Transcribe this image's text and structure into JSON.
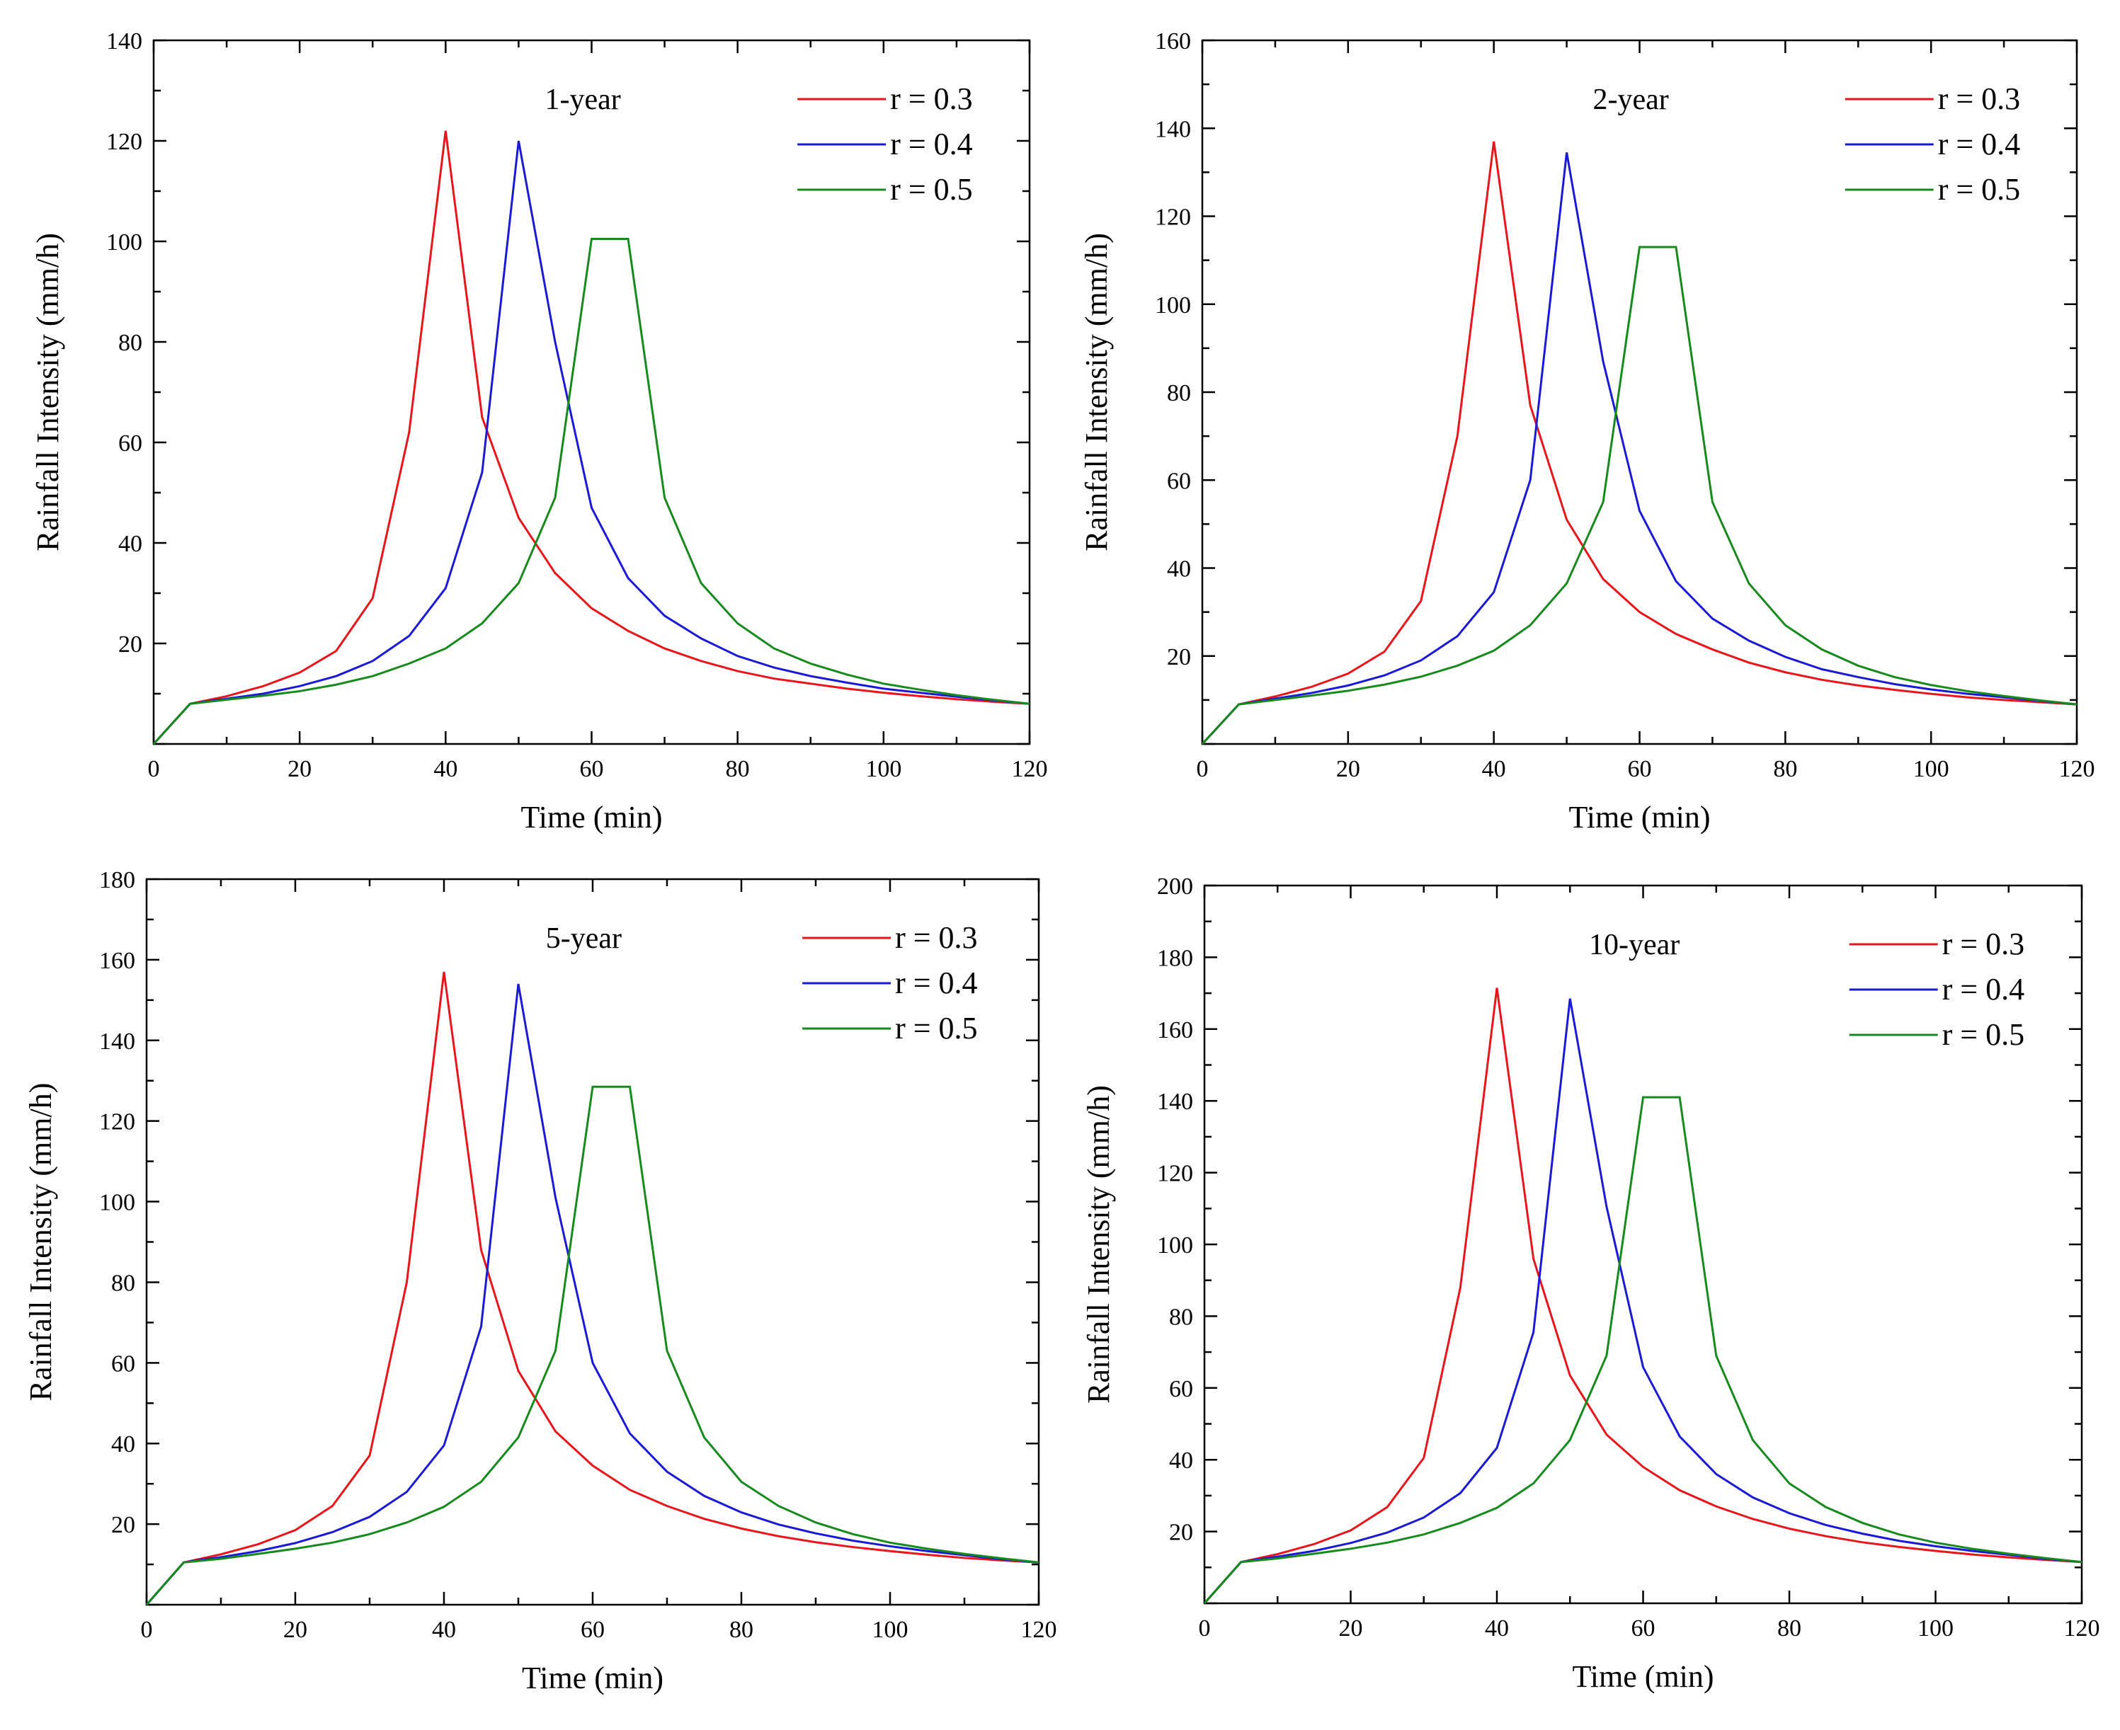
{
  "figure": {
    "description_free": true
  },
  "chart_data": [
    {
      "type": "line",
      "title": "1-year",
      "xlabel": "Time (min)",
      "ylabel": "Rainfall Intensity (mm/h)",
      "xlim": [
        0,
        120
      ],
      "ylim": [
        0,
        140
      ],
      "xticks": [
        0,
        20,
        40,
        60,
        80,
        100,
        120
      ],
      "yticks": [
        20,
        40,
        60,
        80,
        100,
        120,
        140
      ],
      "legend_position": "top-right",
      "x": [
        0,
        5,
        10,
        15,
        20,
        25,
        30,
        35,
        40,
        45,
        50,
        55,
        60,
        65,
        70,
        75,
        80,
        85,
        90,
        95,
        100,
        105,
        110,
        115,
        120
      ],
      "series": [
        {
          "name": "r = 0.3",
          "color": "#e8151b",
          "values": [
            0,
            8,
            9.5,
            11.5,
            14.2,
            18.5,
            29,
            62,
            122,
            65,
            45,
            34,
            27,
            22.5,
            19,
            16.5,
            14.5,
            13,
            12,
            11,
            10.2,
            9.5,
            8.9,
            8.4,
            8
          ]
        },
        {
          "name": "r = 0.4",
          "color": "#1a1ad6",
          "values": [
            0,
            8,
            9,
            10,
            11.5,
            13.5,
            16.5,
            21.5,
            31,
            54,
            120,
            80,
            47,
            33,
            25.5,
            21,
            17.5,
            15.2,
            13.5,
            12.2,
            11,
            10.2,
            9.4,
            8.7,
            8
          ]
        },
        {
          "name": "r = 0.5",
          "color": "#178a1e",
          "values": [
            0,
            8,
            8.8,
            9.6,
            10.5,
            11.8,
            13.5,
            16,
            19,
            24,
            32,
            49,
            100.5,
            100.5,
            49,
            32,
            24,
            19,
            16,
            13.8,
            12,
            10.8,
            9.7,
            8.8,
            8
          ]
        }
      ]
    },
    {
      "type": "line",
      "title": "2-year",
      "xlabel": "Time (min)",
      "ylabel": "Rainfall Intensity (mm/h)",
      "xlim": [
        0,
        120
      ],
      "ylim": [
        0,
        160
      ],
      "xticks": [
        0,
        20,
        40,
        60,
        80,
        100,
        120
      ],
      "yticks": [
        20,
        40,
        60,
        80,
        100,
        120,
        140,
        160
      ],
      "legend_position": "top-right",
      "x": [
        0,
        5,
        10,
        15,
        20,
        25,
        30,
        35,
        40,
        45,
        50,
        55,
        60,
        65,
        70,
        75,
        80,
        85,
        90,
        95,
        100,
        105,
        110,
        115,
        120
      ],
      "series": [
        {
          "name": "r = 0.3",
          "color": "#e8151b",
          "values": [
            0,
            9,
            10.8,
            13,
            16,
            21,
            32.5,
            70,
            137,
            77,
            51,
            37.5,
            30,
            25,
            21.5,
            18.5,
            16.3,
            14.6,
            13.3,
            12.3,
            11.4,
            10.6,
            10,
            9.5,
            9
          ]
        },
        {
          "name": "r = 0.4",
          "color": "#1a1ad6",
          "values": [
            0,
            9,
            10.3,
            11.6,
            13.3,
            15.6,
            19,
            24.5,
            34.5,
            60,
            134.5,
            87,
            53,
            37,
            28.5,
            23.5,
            19.8,
            17,
            15.2,
            13.6,
            12.4,
            11.4,
            10.6,
            9.8,
            9
          ]
        },
        {
          "name": "r = 0.5",
          "color": "#178a1e",
          "values": [
            0,
            9,
            10,
            11,
            12.1,
            13.5,
            15.3,
            17.8,
            21.2,
            27,
            36.5,
            55,
            113,
            113,
            55,
            36.5,
            27,
            21.5,
            17.8,
            15.2,
            13.4,
            12,
            10.9,
            9.9,
            9
          ]
        }
      ]
    },
    {
      "type": "line",
      "title": "5-year",
      "xlabel": "Time (min)",
      "ylabel": "Rainfall Intensity (mm/h)",
      "xlim": [
        0,
        120
      ],
      "ylim": [
        0,
        180
      ],
      "xticks": [
        0,
        20,
        40,
        60,
        80,
        100,
        120
      ],
      "yticks": [
        20,
        40,
        60,
        80,
        100,
        120,
        140,
        160,
        180
      ],
      "legend_position": "top-right",
      "x": [
        0,
        5,
        10,
        15,
        20,
        25,
        30,
        35,
        40,
        45,
        50,
        55,
        60,
        65,
        70,
        75,
        80,
        85,
        90,
        95,
        100,
        105,
        110,
        115,
        120
      ],
      "series": [
        {
          "name": "r = 0.3",
          "color": "#e8151b",
          "values": [
            0,
            10.5,
            12.5,
            15,
            18.5,
            24.5,
            37,
            80,
            157,
            88,
            58,
            43,
            34.5,
            28.5,
            24.5,
            21.3,
            18.9,
            17,
            15.5,
            14.3,
            13.3,
            12.4,
            11.6,
            11,
            10.5
          ]
        },
        {
          "name": "r = 0.4",
          "color": "#1a1ad6",
          "values": [
            0,
            10.5,
            11.8,
            13.3,
            15.3,
            18,
            21.8,
            28,
            39.5,
            69,
            154,
            101,
            60,
            42.5,
            33,
            27,
            22.9,
            19.9,
            17.7,
            15.9,
            14.5,
            13.3,
            12.3,
            11.3,
            10.5
          ]
        },
        {
          "name": "r = 0.5",
          "color": "#178a1e",
          "values": [
            0,
            10.5,
            11.4,
            12.6,
            13.9,
            15.4,
            17.5,
            20.4,
            24.3,
            30.5,
            41.5,
            63,
            128.5,
            128.5,
            63,
            41.5,
            30.5,
            24.5,
            20.4,
            17.5,
            15.4,
            13.9,
            12.6,
            11.5,
            10.5
          ]
        }
      ]
    },
    {
      "type": "line",
      "title": "10-year",
      "xlabel": "Time (min)",
      "ylabel": "Rainfall Intensity (mm/h)",
      "xlim": [
        0,
        120
      ],
      "ylim": [
        0,
        200
      ],
      "xticks": [
        0,
        20,
        40,
        60,
        80,
        100,
        120
      ],
      "yticks": [
        20,
        40,
        60,
        80,
        100,
        120,
        140,
        160,
        180,
        200
      ],
      "legend_position": "top-right",
      "x": [
        0,
        5,
        10,
        15,
        20,
        25,
        30,
        35,
        40,
        45,
        50,
        55,
        60,
        65,
        70,
        75,
        80,
        85,
        90,
        95,
        100,
        105,
        110,
        115,
        120
      ],
      "series": [
        {
          "name": "r = 0.3",
          "color": "#e8151b",
          "values": [
            0,
            11.5,
            13.7,
            16.5,
            20.3,
            26.8,
            40.5,
            88,
            171.5,
            96,
            63.5,
            47,
            38,
            31.5,
            27,
            23.5,
            20.8,
            18.7,
            17,
            15.7,
            14.6,
            13.6,
            12.8,
            12.1,
            11.5
          ]
        },
        {
          "name": "r = 0.4",
          "color": "#1a1ad6",
          "values": [
            0,
            11.5,
            13,
            14.6,
            16.8,
            19.7,
            23.9,
            30.7,
            43.3,
            75.5,
            168.5,
            110.5,
            65.8,
            46.5,
            36,
            29.5,
            25.1,
            21.8,
            19.4,
            17.4,
            15.9,
            14.6,
            13.5,
            12.4,
            11.5
          ]
        },
        {
          "name": "r = 0.5",
          "color": "#178a1e",
          "values": [
            0,
            11.5,
            12.5,
            13.8,
            15.2,
            16.9,
            19.2,
            22.4,
            26.6,
            33.4,
            45.5,
            69,
            141,
            141,
            69,
            45.5,
            33.4,
            26.8,
            22.4,
            19.2,
            16.9,
            15.2,
            13.8,
            12.6,
            11.5
          ]
        }
      ]
    }
  ]
}
